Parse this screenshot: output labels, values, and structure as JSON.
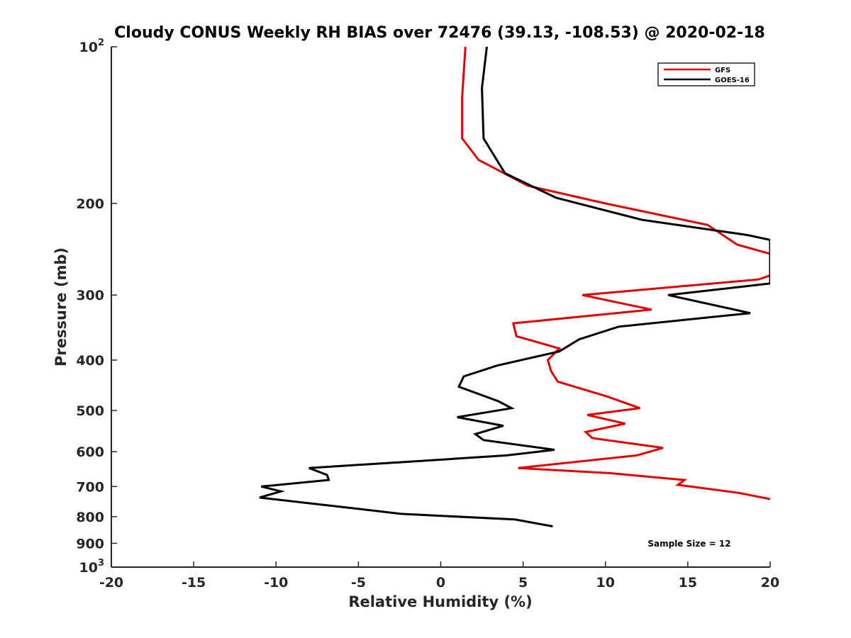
{
  "chart_data": {
    "type": "line",
    "title": "Cloudy CONUS Weekly RH BIAS over 72476 (39.13, -108.53) @ 2020-02-18",
    "xlabel": "Relative Humidity (%)",
    "ylabel": "Pressure (mb)",
    "xlim": [
      -20,
      20
    ],
    "ylim": [
      100,
      1000
    ],
    "y_scale": "log",
    "y_reversed": true,
    "x_ticks": [
      -20,
      -15,
      -10,
      -5,
      0,
      5,
      10,
      15,
      20
    ],
    "x_tick_labels": [
      "-20",
      "-15",
      "-10",
      "-5",
      "0",
      "5",
      "10",
      "15",
      "20"
    ],
    "y_ticks": [
      {
        "value": 100,
        "base": "10",
        "exp": "2"
      },
      {
        "value": 200,
        "label": "200"
      },
      {
        "value": 300,
        "label": "300"
      },
      {
        "value": 400,
        "label": "400"
      },
      {
        "value": 500,
        "label": "500"
      },
      {
        "value": 600,
        "label": "600"
      },
      {
        "value": 700,
        "label": "700"
      },
      {
        "value": 800,
        "label": "800"
      },
      {
        "value": 900,
        "label": "900"
      },
      {
        "value": 1000,
        "base": "10",
        "exp": "3"
      }
    ],
    "grid": false,
    "legend_position": "top-right",
    "series": [
      {
        "name": "GFS",
        "color": "#e00000",
        "points": [
          [
            1.5,
            100
          ],
          [
            1.3,
            125
          ],
          [
            1.3,
            150
          ],
          [
            2.3,
            165
          ],
          [
            5.3,
            185
          ],
          [
            10.0,
            200
          ],
          [
            16.2,
            220
          ],
          [
            18.0,
            240
          ],
          [
            20.0,
            250
          ],
          [
            20.0,
            275
          ],
          [
            19.3,
            280
          ],
          [
            8.6,
            300
          ],
          [
            12.8,
            320
          ],
          [
            4.4,
            340
          ],
          [
            4.6,
            360
          ],
          [
            7.2,
            380
          ],
          [
            6.5,
            400
          ],
          [
            6.7,
            420
          ],
          [
            7.1,
            440
          ],
          [
            10.1,
            470
          ],
          [
            12.1,
            495
          ],
          [
            8.9,
            510
          ],
          [
            11.2,
            530
          ],
          [
            8.8,
            550
          ],
          [
            9.2,
            565
          ],
          [
            13.5,
            590
          ],
          [
            11.9,
            610
          ],
          [
            4.7,
            645
          ],
          [
            10.3,
            660
          ],
          [
            14.8,
            680
          ],
          [
            14.4,
            695
          ],
          [
            18.1,
            720
          ],
          [
            20.0,
            740
          ]
        ]
      },
      {
        "name": "GOES-16",
        "color": "#000000",
        "points": [
          [
            2.8,
            100
          ],
          [
            2.5,
            120
          ],
          [
            2.6,
            150
          ],
          [
            3.9,
            175
          ],
          [
            7.0,
            195
          ],
          [
            12.2,
            215
          ],
          [
            18.6,
            230
          ],
          [
            20.0,
            235
          ],
          [
            20.0,
            285
          ],
          [
            13.8,
            300
          ],
          [
            18.8,
            325
          ],
          [
            10.8,
            345
          ],
          [
            8.4,
            365
          ],
          [
            7.2,
            385
          ],
          [
            3.4,
            410
          ],
          [
            1.4,
            430
          ],
          [
            1.1,
            450
          ],
          [
            3.5,
            480
          ],
          [
            4.3,
            495
          ],
          [
            1.0,
            515
          ],
          [
            3.8,
            535
          ],
          [
            2.1,
            555
          ],
          [
            2.6,
            570
          ],
          [
            6.9,
            595
          ],
          [
            4.0,
            610
          ],
          [
            -1.2,
            625
          ],
          [
            -8.0,
            645
          ],
          [
            -6.9,
            665
          ],
          [
            -6.8,
            680
          ],
          [
            -10.9,
            700
          ],
          [
            -9.7,
            715
          ],
          [
            -11.0,
            735
          ],
          [
            -6.2,
            765
          ],
          [
            -2.4,
            790
          ],
          [
            4.5,
            810
          ],
          [
            6.8,
            835
          ]
        ]
      }
    ],
    "annotations": [
      "Sample Size = 12"
    ]
  }
}
